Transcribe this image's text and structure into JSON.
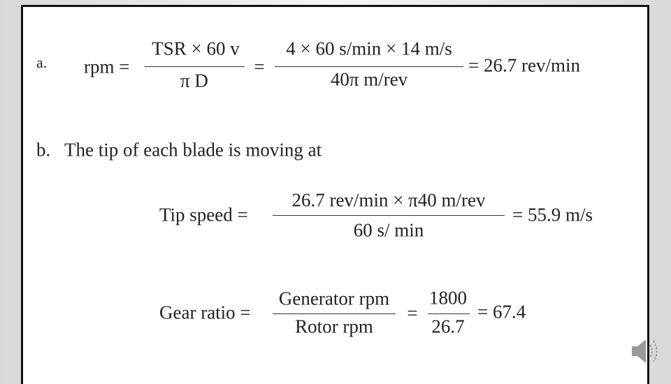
{
  "part_a": {
    "label": "a.",
    "lhs": "rpm =",
    "fraction_1": {
      "numerator": "TSR × 60 v",
      "denominator": "π D"
    },
    "equals": "=",
    "fraction_2": {
      "numerator": "4 × 60 s/min × 14 m/s",
      "denominator": "40π m/rev"
    },
    "result": "= 26.7 rev/min"
  },
  "part_b": {
    "label": "b.",
    "text": "The tip of each blade is moving at",
    "tip_speed": {
      "lhs": "Tip speed =",
      "numerator": "26.7 rev/min × π40 m/rev",
      "denominator": "60 s/ min",
      "result": "= 55.9 m/s"
    },
    "gear_ratio": {
      "lhs": "Gear ratio =",
      "fraction_1": {
        "numerator": "Generator rpm",
        "denominator": "Rotor rpm"
      },
      "equals": "=",
      "fraction_2": {
        "numerator": "1800",
        "denominator": "26.7"
      },
      "result": "= 67.4"
    }
  }
}
